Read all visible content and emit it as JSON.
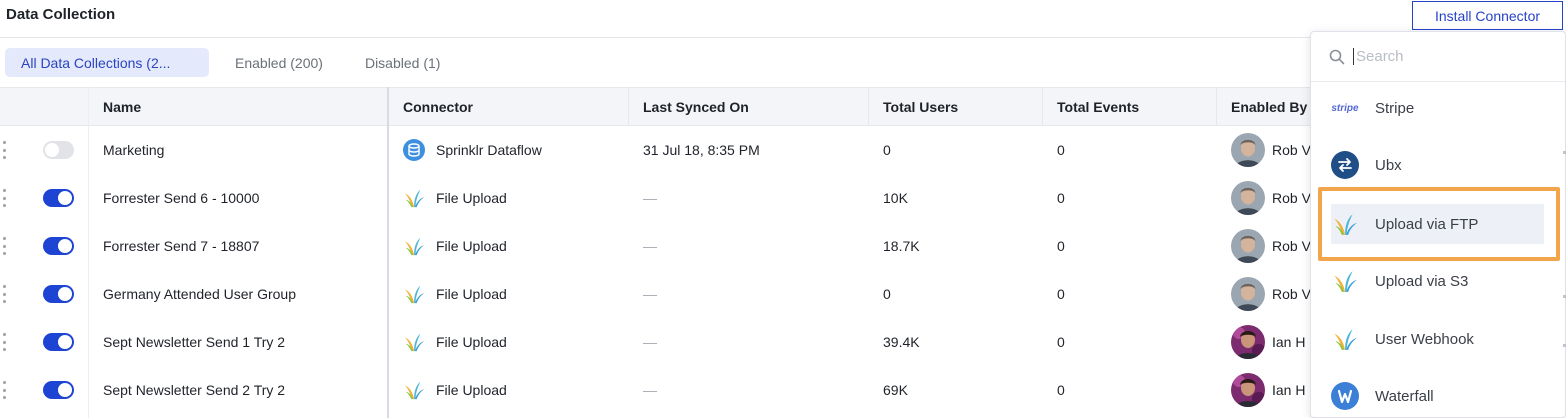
{
  "header": {
    "title": "Data Collection",
    "install_label": "Install Connector"
  },
  "tabs": [
    {
      "label": "All Data Collections (2...",
      "active": true
    },
    {
      "label": "Enabled (200)",
      "active": false
    },
    {
      "label": "Disabled (1)",
      "active": false
    }
  ],
  "table": {
    "columns": [
      "Name",
      "Connector",
      "Last Synced On",
      "Total Users",
      "Total Events",
      "Enabled By"
    ],
    "rows": [
      {
        "enabled": false,
        "name": "Marketing",
        "connector": "Sprinklr Dataflow",
        "connector_icon": "database-icon",
        "last_synced": "31 Jul 18, 8:35 PM",
        "total_users": "0",
        "total_events": "0",
        "enabled_by": "Rob V"
      },
      {
        "enabled": true,
        "name": "Forrester Send 6 - 10000",
        "connector": "File Upload",
        "connector_icon": "file-upload-icon",
        "last_synced": "—",
        "total_users": "10K",
        "total_events": "0",
        "enabled_by": "Rob V"
      },
      {
        "enabled": true,
        "name": "Forrester Send 7 - 18807",
        "connector": "File Upload",
        "connector_icon": "file-upload-icon",
        "last_synced": "—",
        "total_users": "18.7K",
        "total_events": "0",
        "enabled_by": "Rob V"
      },
      {
        "enabled": true,
        "name": "Germany Attended User Group",
        "connector": "File Upload",
        "connector_icon": "file-upload-icon",
        "last_synced": "—",
        "total_users": "0",
        "total_events": "0",
        "enabled_by": "Rob V"
      },
      {
        "enabled": true,
        "name": "Sept Newsletter Send 1 Try 2",
        "connector": "File Upload",
        "connector_icon": "file-upload-icon",
        "last_synced": "—",
        "total_users": "39.4K",
        "total_events": "0",
        "enabled_by": "Ian H"
      },
      {
        "enabled": true,
        "name": "Sept Newsletter Send 2 Try 2",
        "connector": "File Upload",
        "connector_icon": "file-upload-icon",
        "last_synced": "—",
        "total_users": "69K",
        "total_events": "0",
        "enabled_by": "Ian H"
      }
    ]
  },
  "dropdown": {
    "search_placeholder": "Search",
    "items": [
      {
        "label": "Stripe",
        "icon": "stripe-logo-icon",
        "icon_text": "stripe"
      },
      {
        "label": "Ubx",
        "icon": "ubx-swap-icon"
      },
      {
        "label": "Upload via FTP",
        "icon": "upload-splash-icon",
        "highlighted": true
      },
      {
        "label": "Upload via S3",
        "icon": "upload-splash-icon"
      },
      {
        "label": "User Webhook",
        "icon": "upload-splash-icon"
      },
      {
        "label": "Waterfall",
        "icon": "waterfall-icon"
      }
    ]
  },
  "colors": {
    "accent": "#1e44d4",
    "highlight_border": "#f2a54a"
  }
}
